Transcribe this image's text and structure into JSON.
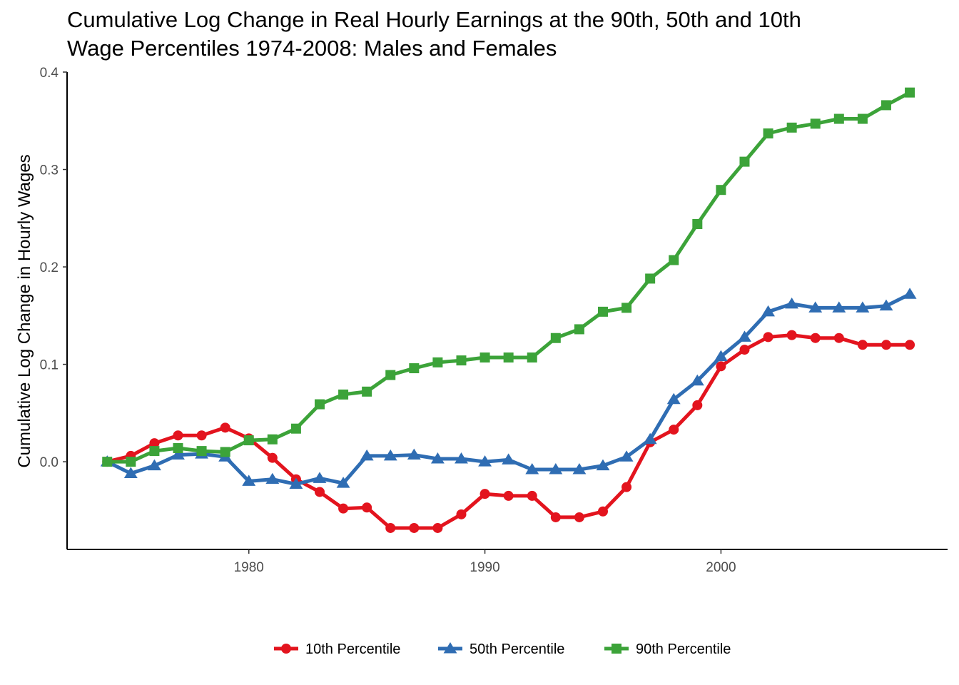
{
  "chart_data": {
    "type": "line",
    "title_lines": [
      "Cumulative Log Change in Real Hourly Earnings at the 90th, 50th and 10th",
      "Wage Percentiles 1974-2008: Males and Females"
    ],
    "xlabel": "",
    "ylabel": "Cumulative Log Change in Hourly Wages",
    "xlim": [
      1972.3,
      2009.6
    ],
    "ylim": [
      -0.09,
      0.4
    ],
    "x_ticks": [
      1980,
      1990,
      2000
    ],
    "y_ticks": [
      0.0,
      0.1,
      0.2,
      0.3,
      0.4
    ],
    "y_tick_labels": [
      "0.0",
      "0.1",
      "0.2",
      "0.3",
      "0.4"
    ],
    "grid": false,
    "legend_position": "bottom",
    "x": [
      1974,
      1975,
      1976,
      1977,
      1978,
      1979,
      1980,
      1981,
      1982,
      1983,
      1984,
      1985,
      1986,
      1987,
      1988,
      1989,
      1990,
      1991,
      1992,
      1993,
      1994,
      1995,
      1996,
      1997,
      1998,
      1999,
      2000,
      2001,
      2002,
      2003,
      2004,
      2005,
      2006,
      2007,
      2008
    ],
    "series": [
      {
        "name": "10th Percentile",
        "color": "#e3141e",
        "marker": "circle",
        "values": [
          0.0,
          0.006,
          0.019,
          0.027,
          0.027,
          0.035,
          0.024,
          0.004,
          -0.018,
          -0.031,
          -0.048,
          -0.047,
          -0.068,
          -0.068,
          -0.068,
          -0.054,
          -0.033,
          -0.035,
          -0.035,
          -0.057,
          -0.057,
          -0.051,
          -0.026,
          0.02,
          0.033,
          0.058,
          0.098,
          0.115,
          0.128,
          0.13,
          0.127,
          0.127,
          0.12,
          0.12,
          0.12
        ]
      },
      {
        "name": "50th Percentile",
        "color": "#2f6db3",
        "marker": "triangle",
        "values": [
          0.0,
          -0.012,
          -0.004,
          0.007,
          0.008,
          0.005,
          -0.02,
          -0.018,
          -0.023,
          -0.017,
          -0.022,
          0.006,
          0.006,
          0.007,
          0.003,
          0.003,
          0.0,
          0.002,
          -0.008,
          -0.008,
          -0.008,
          -0.004,
          0.005,
          0.023,
          0.064,
          0.083,
          0.108,
          0.128,
          0.154,
          0.162,
          0.158,
          0.158,
          0.158,
          0.16,
          0.172
        ]
      },
      {
        "name": "90th Percentile",
        "color": "#3ca339",
        "marker": "square",
        "values": [
          0.0,
          0.0,
          0.011,
          0.014,
          0.011,
          0.01,
          0.022,
          0.023,
          0.034,
          0.059,
          0.069,
          0.072,
          0.089,
          0.096,
          0.102,
          0.104,
          0.107,
          0.107,
          0.107,
          0.127,
          0.136,
          0.154,
          0.158,
          0.188,
          0.207,
          0.244,
          0.279,
          0.308,
          0.337,
          0.343,
          0.347,
          0.352,
          0.352,
          0.366,
          0.379
        ]
      }
    ]
  }
}
